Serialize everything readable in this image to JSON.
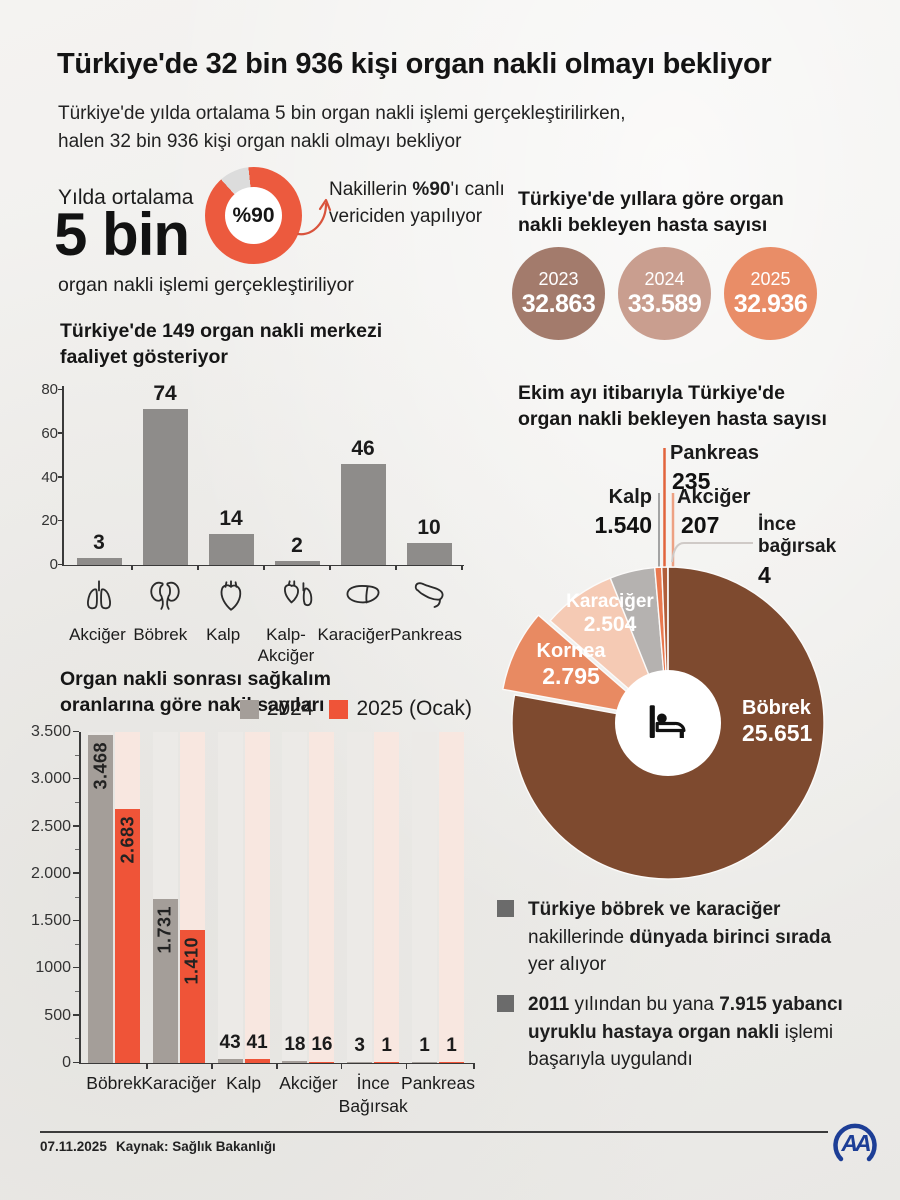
{
  "header": {
    "title": "Türkiye'de 32 bin 936 kişi organ nakli olmayı bekliyor",
    "subtitle_lines": [
      "Türkiye'de yılda ortalama 5 bin organ nakli işlemi gerçekleştirilirken,",
      "halen 32 bin 936 kişi organ nakli olmayı bekliyor"
    ]
  },
  "avg_stat": {
    "intro": "Yılda ortalama",
    "big_value": "5 bin",
    "suffix": "organ nakli işlemi gerçekleştiriliyor",
    "note_segments": [
      {
        "t": "Nakillerin ",
        "b": false
      },
      {
        "t": "%90",
        "b": true
      },
      {
        "t": "'ı canlı vericiden yapılıyor",
        "b": false
      }
    ]
  },
  "yearly_waiting": {
    "title": "Türkiye'de yıllara göre organ nakli bekleyen hasta sayısı",
    "items": [
      {
        "year": "2023",
        "value": "32.863",
        "color": "#a37b6c"
      },
      {
        "year": "2024",
        "value": "33.589",
        "color": "#c99e8f"
      },
      {
        "year": "2025",
        "value": "32.936",
        "color": "#e98d67"
      }
    ]
  },
  "chart_data": [
    {
      "id": "transplant-centers",
      "type": "bar",
      "title": "Türkiye'de 149 organ nakli merkezi faaliyet gösteriyor",
      "categories": [
        "Akciğer",
        "Böbrek",
        "Kalp",
        "Kalp-\nAkciğer",
        "Karaciğer",
        "Pankreas"
      ],
      "values": [
        3,
        74,
        14,
        2,
        46,
        10
      ],
      "icons": [
        "lungs-icon",
        "kidneys-icon",
        "heart-icon",
        "heart-lungs-icon",
        "liver-icon",
        "pancreas-icon"
      ],
      "ylim": [
        0,
        80
      ],
      "yticks": [
        0,
        20,
        40,
        60,
        80
      ],
      "bar_color": "#8e8c8a",
      "grid": false
    },
    {
      "id": "survival-transplant-counts",
      "type": "grouped-bar",
      "title": "Organ nakli sonrası sağkalım oranlarına göre nakil sayıları",
      "categories": [
        "Böbrek",
        "Karaciğer",
        "Kalp",
        "Akciğer",
        "İnce\nBağırsak",
        "Pankreas"
      ],
      "series": [
        {
          "name": "2024",
          "color": "#a49e99",
          "values": [
            3468,
            1731,
            43,
            18,
            3,
            1
          ],
          "labels": [
            "3.468",
            "1.731",
            "43",
            "18",
            "3",
            "1"
          ]
        },
        {
          "name": "2025 (Ocak)",
          "color": "#ef5438",
          "values": [
            2683,
            1410,
            41,
            16,
            1,
            1
          ],
          "labels": [
            "2.683",
            "1.410",
            "41",
            "16",
            "1",
            "1"
          ]
        }
      ],
      "bg_colors": [
        "#eceae7",
        "#f8e7e0"
      ],
      "ylim": [
        0,
        3500
      ],
      "ytick_values": [
        0,
        500,
        1000,
        1500,
        2000,
        2500,
        3000,
        3500
      ],
      "ytick_labels": [
        "0",
        "500",
        "1000",
        "1.500",
        "2.000",
        "2.500",
        "3.000",
        "3.500"
      ],
      "legend_position": "top-right"
    },
    {
      "id": "waiting-by-organ",
      "type": "pie",
      "title": "Ekim ayı itibarıyla Türkiye'de organ nakli bekleyen hasta sayısı",
      "start_angle": "top",
      "direction": "clockwise",
      "center_icon": "patient-bed-icon",
      "slices": [
        {
          "label": "Böbrek",
          "value": 25651,
          "display": "25.651",
          "color": "#7e4a2f",
          "exploded": false
        },
        {
          "label": "Kornea",
          "value": 2795,
          "display": "2.795",
          "color": "#e88a62",
          "exploded": true
        },
        {
          "label": "Karaciğer",
          "value": 2504,
          "display": "2.504",
          "color": "#f5cab4",
          "exploded": false
        },
        {
          "label": "Kalp",
          "value": 1540,
          "display": "1.540",
          "color": "#b5b2b0",
          "exploded": false
        },
        {
          "label": "Pankreas",
          "value": 235,
          "display": "235",
          "color": "#e97950",
          "exploded": false
        },
        {
          "label": "Akciğer",
          "value": 207,
          "display": "207",
          "color": "#b15e3b",
          "exploded": false
        },
        {
          "label": "İnce bağırsak",
          "value": 4,
          "display": "4",
          "color": "#d8d2ce",
          "exploded": false
        }
      ]
    },
    {
      "id": "living-donor-share",
      "type": "donut",
      "value": 90,
      "label": "%90",
      "color": "#ec5a3e",
      "remainder_color": "#dcdcdc"
    }
  ],
  "facts": [
    {
      "segments": [
        {
          "t": "Türkiye böbrek ve karaciğer",
          "b": true
        },
        {
          "t": " nakillerinde ",
          "b": false
        },
        {
          "t": "dünyada birinci sırada",
          "b": true
        },
        {
          "t": " yer alıyor",
          "b": false
        }
      ]
    },
    {
      "segments": [
        {
          "t": "2011",
          "b": true
        },
        {
          "t": " yılından bu yana ",
          "b": false
        },
        {
          "t": "7.915 yabancı uyruklu hastaya organ nakli",
          "b": true
        },
        {
          "t": " işlemi başarıyla uygulandı",
          "b": false
        }
      ]
    }
  ],
  "footer": {
    "date": "07.11.2025",
    "source": "Kaynak: Sağlık Bakanlığı",
    "agency": "AA"
  }
}
